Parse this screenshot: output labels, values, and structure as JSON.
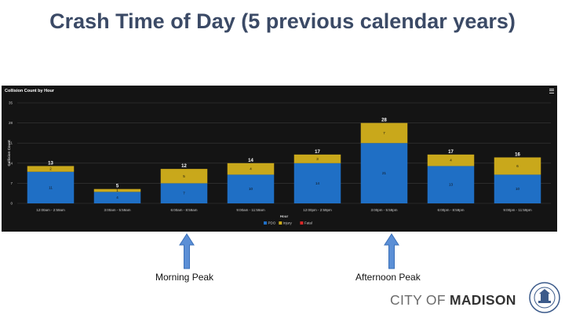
{
  "slide": {
    "title": "Crash Time of Day (5 previous calendar years)",
    "annotations": {
      "morning": "Morning Peak",
      "afternoon": "Afternoon Peak"
    },
    "logo": {
      "city_of": "CITY OF ",
      "madison": "MADISON",
      "seal_icon": "city-seal-icon"
    }
  },
  "colors": {
    "pdo": "#1f6fc5",
    "injury": "#c9a81b",
    "fatal": "#d62828",
    "panel": "#141414",
    "title": "#3b4a66",
    "arrow": "#5b8fd6"
  },
  "chart_data": {
    "type": "bar",
    "stacked": true,
    "title": "Collision Count by Hour",
    "xlabel": "Hour",
    "ylabel": "Collision Count",
    "ylim": [
      0,
      35
    ],
    "yticks": [
      0,
      7,
      14,
      21,
      28,
      35
    ],
    "grid": true,
    "legend_position": "bottom",
    "categories": [
      "12:00am - 2:59am",
      "3:00am - 5:59am",
      "6:00am - 8:59am",
      "9:00am - 11:59am",
      "12:00pm - 2:59pm",
      "3:00pm - 5:59pm",
      "6:00pm - 8:59pm",
      "9:00pm - 11:59pm"
    ],
    "series": [
      {
        "name": "PDO",
        "values": [
          11,
          4,
          7,
          10,
          14,
          21,
          13,
          10
        ]
      },
      {
        "name": "Injury",
        "values": [
          2,
          1,
          5,
          4,
          3,
          7,
          4,
          6
        ]
      },
      {
        "name": "Fatal",
        "values": [
          0,
          0,
          0,
          0,
          0,
          0,
          0,
          0
        ]
      }
    ],
    "totals": [
      13,
      5,
      12,
      14,
      17,
      28,
      17,
      16
    ]
  }
}
